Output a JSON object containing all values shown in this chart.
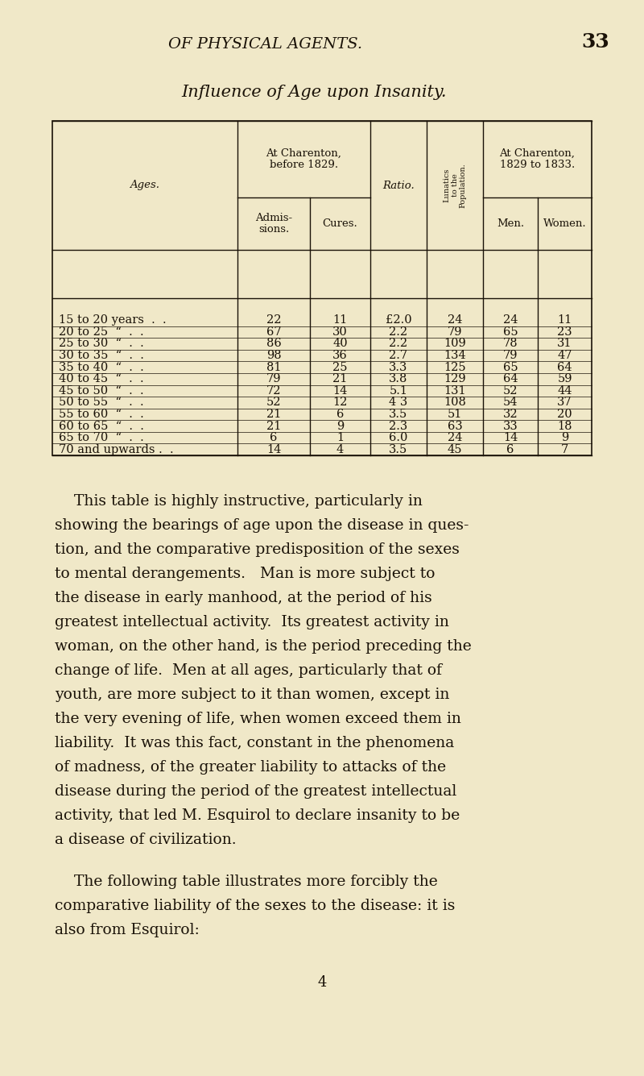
{
  "bg_color": "#f0e8c8",
  "text_color": "#1a1208",
  "page_header": "OF PHYSICAL AGENTS.",
  "page_number": "33",
  "table_title": "Influence of Age upon Insanity.",
  "ages_col": "Ages.",
  "rows": [
    {
      "age": "15 to 20 years  .  .",
      "admissions": "22",
      "cures": "11",
      "ratio": "£2.0",
      "lunatics": "24",
      "men": "24",
      "women": "11"
    },
    {
      "age": "20 to 25  “  .  .",
      "admissions": "67",
      "cures": "30",
      "ratio": "2.2",
      "lunatics": "79",
      "men": "65",
      "women": "23"
    },
    {
      "age": "25 to 30  “  .  .",
      "admissions": "86",
      "cures": "40",
      "ratio": "2.2",
      "lunatics": "109",
      "men": "78",
      "women": "31"
    },
    {
      "age": "30 to 35  “  .  .",
      "admissions": "98",
      "cures": "36",
      "ratio": "2.7",
      "lunatics": "134",
      "men": "79",
      "women": "47"
    },
    {
      "age": "35 to 40  “  .  .",
      "admissions": "81",
      "cures": "25",
      "ratio": "3.3",
      "lunatics": "125",
      "men": "65",
      "women": "64"
    },
    {
      "age": "40 to 45  “  .  .",
      "admissions": "79",
      "cures": "21",
      "ratio": "3.8",
      "lunatics": "129",
      "men": "64",
      "women": "59"
    },
    {
      "age": "45 to 50  “  .  .",
      "admissions": "72",
      "cures": "14",
      "ratio": "5.1",
      "lunatics": "131",
      "men": "52",
      "women": "44"
    },
    {
      "age": "50 to 55  “  .  .",
      "admissions": "52",
      "cures": "12",
      "ratio": "4 3",
      "lunatics": "108",
      "men": "54",
      "women": "37"
    },
    {
      "age": "55 to 60  “  .  .",
      "admissions": "21",
      "cures": "6",
      "ratio": "3.5",
      "lunatics": "51",
      "men": "32",
      "women": "20"
    },
    {
      "age": "60 to 65  “  .  .",
      "admissions": "21",
      "cures": "9",
      "ratio": "2.3",
      "lunatics": "63",
      "men": "33",
      "women": "18"
    },
    {
      "age": "65 to 70  “  .  .",
      "admissions": "6",
      "cures": "1",
      "ratio": "6.0",
      "lunatics": "24",
      "men": "14",
      "women": "9"
    },
    {
      "age": "70 and upwards .  .",
      "admissions": "14",
      "cures": "4",
      "ratio": "3.5",
      "lunatics": "45",
      "men": "6",
      "women": "7"
    }
  ],
  "para1_lines": [
    "    This table is highly instructive, particularly in",
    "showing the bearings of age upon the disease in ques-",
    "tion, and the comparative predisposition of the sexes",
    "to mental derangements.   Man is more subject to",
    "the disease in early manhood, at the period of his",
    "greatest intellectual activity.  Its greatest activity in",
    "woman, on the other hand, is the period preceding the",
    "change of life.  Men at all ages, particularly that of",
    "youth, are more subject to it than women, except in",
    "the very evening of life, when women exceed them in",
    "liability.  It was this fact, constant in the phenomena",
    "of madness, of the greater liability to attacks of the",
    "disease during the period of the greatest intellectual",
    "activity, that led M. Esquirol to declare insanity to be",
    "a disease of civilization."
  ],
  "para2_lines": [
    "    The following table illustrates more forcibly the",
    "comparative liability of the sexes to the disease: it is",
    "also from Esquirol:"
  ],
  "footer_number": "4"
}
